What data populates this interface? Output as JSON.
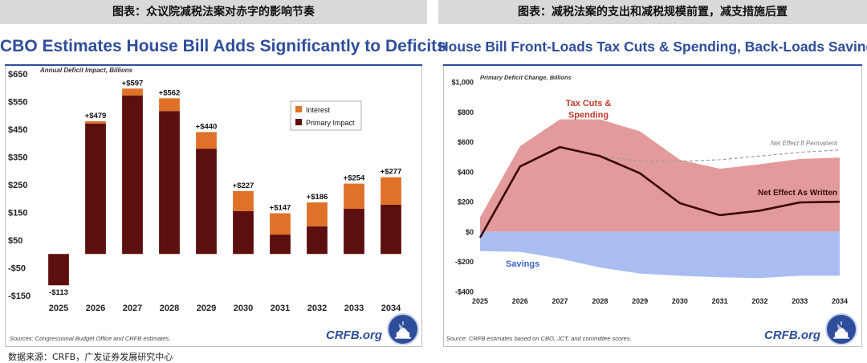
{
  "left": {
    "header": "图表：众议院减税法案对赤字的影响节奏",
    "source": "Sources: Congressional Budget Office and CRFB estimates.",
    "brand": "CRFB.org"
  },
  "right": {
    "header": "图表：减税法案的支出和减税规模前置，减支措施后置",
    "source": "Source: CRFB estimates based on CBO, JCT, and committee scores.",
    "brand": "CRFB.org"
  },
  "footnote": "数据来源：CRFB，广发证券发展研究中心",
  "colors": {
    "brand_blue": "#2e4d9b",
    "interest": "#e07128",
    "primary": "#5c0f0f",
    "tax_cuts_area": "#e39a9a",
    "savings_area": "#a9bdf0",
    "net_line": "#3a0808"
  },
  "chart_data": [
    {
      "type": "bar",
      "title": "CBO Estimates House Bill Adds Significantly to Deficits",
      "subtitle": "Annual Deficit Impact, Billions",
      "categories": [
        "2025",
        "2026",
        "2027",
        "2028",
        "2029",
        "2030",
        "2031",
        "2032",
        "2033",
        "2034"
      ],
      "series": [
        {
          "name": "Primary Impact",
          "values": [
            -113,
            471,
            572,
            516,
            380,
            155,
            70,
            100,
            163,
            178
          ]
        },
        {
          "name": "Interest",
          "values": [
            0,
            8,
            25,
            46,
            60,
            72,
            77,
            86,
            91,
            99
          ]
        }
      ],
      "totals": [
        -113,
        479,
        597,
        562,
        440,
        227,
        147,
        186,
        254,
        277
      ],
      "total_labels": [
        "-$113",
        "+$479",
        "+$597",
        "+$562",
        "+$440",
        "+$227",
        "+$147",
        "+$186",
        "+$254",
        "+$277"
      ],
      "ylim": [
        -150,
        650
      ],
      "yticks": [
        -150,
        -50,
        50,
        150,
        250,
        350,
        450,
        550,
        650
      ],
      "ytick_labels": [
        "-$150",
        "-$50",
        "$50",
        "$150",
        "$250",
        "$350",
        "$450",
        "$550",
        "$650"
      ],
      "legend": [
        "Interest",
        "Primary Impact"
      ],
      "legend_position": "top-right",
      "grid": false
    },
    {
      "type": "area",
      "title": "House Bill Front-Loads Tax Cuts & Spending, Back-Loads Savings",
      "subtitle": "Primary Deficit Change, Billions",
      "x": [
        "2025",
        "2026",
        "2027",
        "2028",
        "2029",
        "2030",
        "2031",
        "2032",
        "2033",
        "2034"
      ],
      "series": [
        {
          "name": "Tax Cuts & Spending",
          "values": [
            95,
            570,
            750,
            750,
            670,
            480,
            420,
            450,
            485,
            495
          ]
        },
        {
          "name": "Savings",
          "values": [
            -130,
            -135,
            -180,
            -240,
            -280,
            -295,
            -305,
            -310,
            -295,
            -295
          ]
        },
        {
          "name": "Net Effect As Written",
          "values": [
            -40,
            435,
            565,
            505,
            390,
            190,
            110,
            140,
            195,
            200
          ]
        },
        {
          "name": "Net Effect If Permanent",
          "values": [
            null,
            null,
            null,
            505,
            470,
            470,
            480,
            505,
            530,
            545
          ]
        }
      ],
      "annotations": {
        "tax_cuts_line1": "Tax Cuts &",
        "tax_cuts_line2": "Spending",
        "savings": "Savings",
        "net_written": "Net Effect As Written",
        "net_permanent": "Net Effect If Permanent"
      },
      "ylim": [
        -400,
        1000
      ],
      "yticks": [
        -400,
        -200,
        0,
        200,
        400,
        600,
        800,
        1000
      ],
      "ytick_labels": [
        "-$400",
        "-$200",
        "$0",
        "$200",
        "$400",
        "$600",
        "$800",
        "$1,000"
      ],
      "grid": false
    }
  ]
}
